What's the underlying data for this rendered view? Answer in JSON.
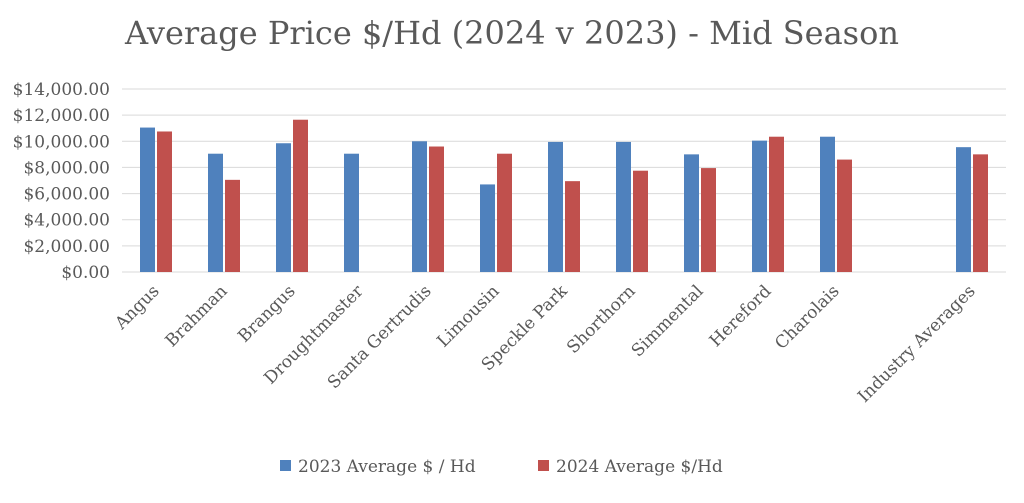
{
  "chart_data": {
    "type": "bar",
    "title": "Average Price $/Hd (2024 v 2023) - Mid Season",
    "xlabel": "",
    "ylabel": "",
    "ylim": [
      0,
      14000
    ],
    "grid": true,
    "legend_position": "bottom",
    "y_ticks": [
      "$0.00",
      "$2,000.00",
      "$4,000.00",
      "$6,000.00",
      "$8,000.00",
      "$10,000.00",
      "$12,000.00",
      "$14,000.00"
    ],
    "categories": [
      "Angus",
      "Brahman",
      "Brangus",
      "Droughtmaster",
      "Santa Gertrudis",
      "Limousin",
      "Speckle Park",
      "Shorthorn",
      "Simmental",
      "Hereford",
      "Charolais",
      "",
      "Industry Averages"
    ],
    "series": [
      {
        "name": "2023 Average $ / Hd",
        "color": "#4f81bd",
        "values": [
          11050,
          9050,
          9850,
          9050,
          10000,
          6700,
          9950,
          9950,
          9000,
          10050,
          10350,
          null,
          9550
        ]
      },
      {
        "name": "2024 Average $/Hd",
        "color": "#c0504d",
        "values": [
          10750,
          7050,
          11650,
          null,
          9600,
          9050,
          6950,
          7750,
          7950,
          10350,
          8600,
          null,
          9000
        ]
      }
    ]
  }
}
